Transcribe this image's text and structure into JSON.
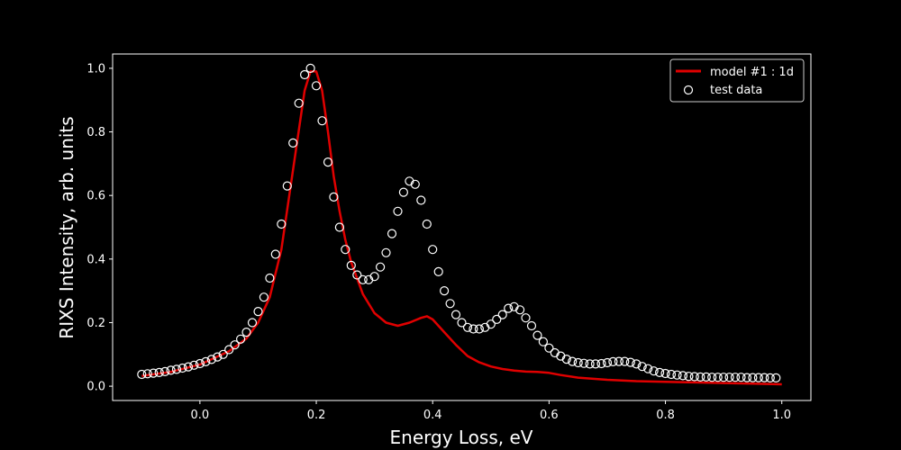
{
  "chart_data": {
    "type": "line",
    "xlabel": "Energy Loss,  eV",
    "ylabel": "RIXS Intensity,  arb.  units",
    "xlim": [
      -0.15,
      1.05
    ],
    "ylim": [
      -0.045,
      1.045
    ],
    "xticks": [
      0.0,
      0.2,
      0.4,
      0.6,
      0.8,
      1.0
    ],
    "yticks": [
      0.0,
      0.2,
      0.4,
      0.6,
      0.8,
      1.0
    ],
    "xtick_labels": [
      "0.0",
      "0.2",
      "0.4",
      "0.6",
      "0.8",
      "1.0"
    ],
    "ytick_labels": [
      "0.0",
      "0.2",
      "0.4",
      "0.6",
      "0.8",
      "1.0"
    ],
    "grid": false,
    "legend_position": "top-right",
    "legend": [
      "model #1 : 1d",
      "test data"
    ],
    "background": "#000000",
    "axis_color": "#ffffff",
    "series": [
      {
        "name": "model #1 : 1d",
        "kind": "line",
        "color": "#e00000",
        "x": [
          -0.1,
          -0.05,
          0.0,
          0.05,
          0.08,
          0.1,
          0.12,
          0.14,
          0.16,
          0.18,
          0.19,
          0.2,
          0.21,
          0.22,
          0.23,
          0.24,
          0.25,
          0.26,
          0.28,
          0.3,
          0.32,
          0.34,
          0.36,
          0.38,
          0.39,
          0.4,
          0.42,
          0.44,
          0.46,
          0.48,
          0.5,
          0.52,
          0.54,
          0.56,
          0.58,
          0.6,
          0.62,
          0.65,
          0.7,
          0.75,
          0.8,
          0.85,
          0.9,
          0.95,
          1.0
        ],
        "y": [
          0.032,
          0.045,
          0.068,
          0.11,
          0.15,
          0.2,
          0.28,
          0.43,
          0.68,
          0.93,
          0.99,
          0.99,
          0.93,
          0.8,
          0.66,
          0.55,
          0.46,
          0.39,
          0.29,
          0.23,
          0.2,
          0.19,
          0.2,
          0.215,
          0.22,
          0.21,
          0.17,
          0.13,
          0.095,
          0.075,
          0.062,
          0.054,
          0.049,
          0.046,
          0.045,
          0.042,
          0.035,
          0.027,
          0.02,
          0.016,
          0.014,
          0.012,
          0.01,
          0.008,
          0.006
        ]
      },
      {
        "name": "test data",
        "kind": "scatter",
        "color": "#ffffff",
        "x": [
          -0.1,
          -0.09,
          -0.08,
          -0.07,
          -0.06,
          -0.05,
          -0.04,
          -0.03,
          -0.02,
          -0.01,
          0.0,
          0.01,
          0.02,
          0.03,
          0.04,
          0.05,
          0.06,
          0.07,
          0.08,
          0.09,
          0.1,
          0.11,
          0.12,
          0.13,
          0.14,
          0.15,
          0.16,
          0.17,
          0.18,
          0.19,
          0.2,
          0.21,
          0.22,
          0.23,
          0.24,
          0.25,
          0.26,
          0.27,
          0.28,
          0.29,
          0.3,
          0.31,
          0.32,
          0.33,
          0.34,
          0.35,
          0.36,
          0.37,
          0.38,
          0.39,
          0.4,
          0.41,
          0.42,
          0.43,
          0.44,
          0.45,
          0.46,
          0.47,
          0.48,
          0.49,
          0.5,
          0.51,
          0.52,
          0.53,
          0.54,
          0.55,
          0.56,
          0.57,
          0.58,
          0.59,
          0.6,
          0.61,
          0.62,
          0.63,
          0.64,
          0.65,
          0.66,
          0.67,
          0.68,
          0.69,
          0.7,
          0.71,
          0.72,
          0.73,
          0.74,
          0.75,
          0.76,
          0.77,
          0.78,
          0.79,
          0.8,
          0.81,
          0.82,
          0.83,
          0.84,
          0.85,
          0.86,
          0.87,
          0.88,
          0.89,
          0.9,
          0.91,
          0.92,
          0.93,
          0.94,
          0.95,
          0.96,
          0.97,
          0.98,
          0.99
        ],
        "y": [
          0.037,
          0.039,
          0.041,
          0.043,
          0.046,
          0.05,
          0.053,
          0.057,
          0.061,
          0.066,
          0.071,
          0.077,
          0.084,
          0.092,
          0.1,
          0.115,
          0.13,
          0.148,
          0.17,
          0.2,
          0.235,
          0.28,
          0.34,
          0.415,
          0.51,
          0.63,
          0.765,
          0.89,
          0.98,
          1.0,
          0.945,
          0.835,
          0.705,
          0.595,
          0.5,
          0.43,
          0.38,
          0.35,
          0.335,
          0.335,
          0.345,
          0.375,
          0.42,
          0.48,
          0.55,
          0.61,
          0.645,
          0.635,
          0.585,
          0.51,
          0.43,
          0.36,
          0.3,
          0.26,
          0.225,
          0.2,
          0.185,
          0.18,
          0.18,
          0.185,
          0.195,
          0.21,
          0.225,
          0.245,
          0.25,
          0.24,
          0.215,
          0.19,
          0.16,
          0.14,
          0.12,
          0.105,
          0.095,
          0.085,
          0.078,
          0.074,
          0.072,
          0.07,
          0.07,
          0.071,
          0.074,
          0.077,
          0.078,
          0.078,
          0.075,
          0.07,
          0.062,
          0.055,
          0.048,
          0.043,
          0.04,
          0.037,
          0.035,
          0.033,
          0.031,
          0.03,
          0.029,
          0.029,
          0.028,
          0.028,
          0.028,
          0.028,
          0.028,
          0.028,
          0.027,
          0.027,
          0.027,
          0.027,
          0.026,
          0.026
        ]
      }
    ]
  }
}
